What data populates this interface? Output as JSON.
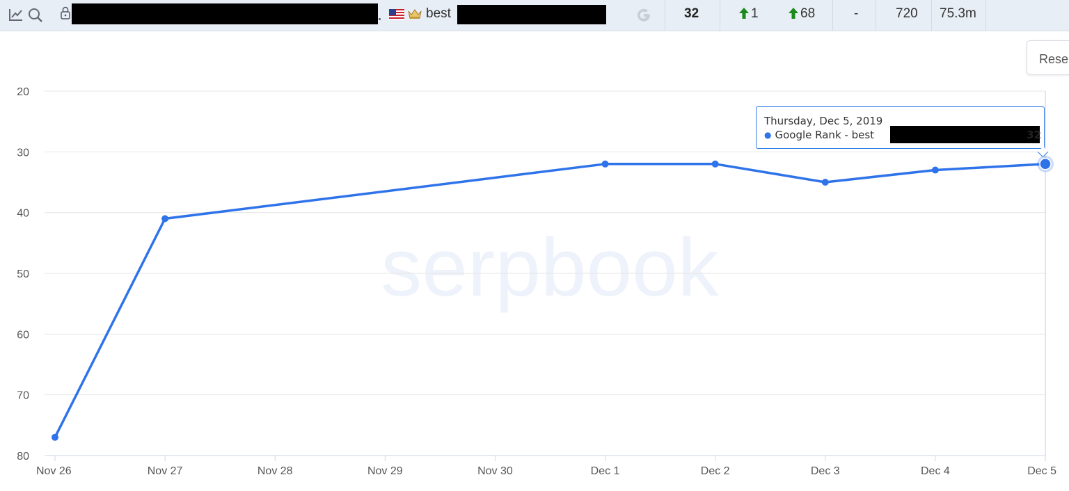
{
  "topbar": {
    "icons": [
      "chart-icon",
      "search-icon",
      "lock-icon",
      "us-flag-icon",
      "crown-icon",
      "google-icon"
    ],
    "keyword_prefix": "best",
    "current_rank": "32",
    "change_day": "1",
    "change_total": "68",
    "best_rank": "-",
    "search_volume": "720",
    "results_count": "75.3m"
  },
  "reset_button": {
    "label": "Rese"
  },
  "watermark": "serpbook",
  "tooltip": {
    "date": "Thursday, Dec 5, 2019",
    "series_label": "Google Rank - best",
    "value": "32"
  },
  "colors": {
    "line": "#2f73ea",
    "up_arrow": "#1a8a1a",
    "topbar_bg": "#e8eef5",
    "watermark": "#eef2fa"
  },
  "chart_data": {
    "type": "line",
    "title": "",
    "xlabel": "",
    "ylabel": "",
    "x": [
      "Nov 26",
      "Nov 27",
      "Nov 28",
      "Nov 29",
      "Nov 30",
      "Dec 1",
      "Dec 2",
      "Dec 3",
      "Dec 4",
      "Dec 5"
    ],
    "series": [
      {
        "name": "Google Rank - best",
        "points": [
          {
            "x": "Nov 26",
            "y": 77
          },
          {
            "x": "Nov 27",
            "y": 41
          },
          {
            "x": "Dec 1",
            "y": 32
          },
          {
            "x": "Dec 2",
            "y": 32
          },
          {
            "x": "Dec 3",
            "y": 35
          },
          {
            "x": "Dec 4",
            "y": 33
          },
          {
            "x": "Dec 5",
            "y": 32
          }
        ]
      }
    ],
    "yticks": [
      20,
      30,
      40,
      50,
      60,
      70,
      80
    ],
    "ylim": [
      20,
      80
    ],
    "y_reversed": true,
    "grid": true,
    "highlighted_point": {
      "x": "Dec 5",
      "y": 32
    }
  }
}
